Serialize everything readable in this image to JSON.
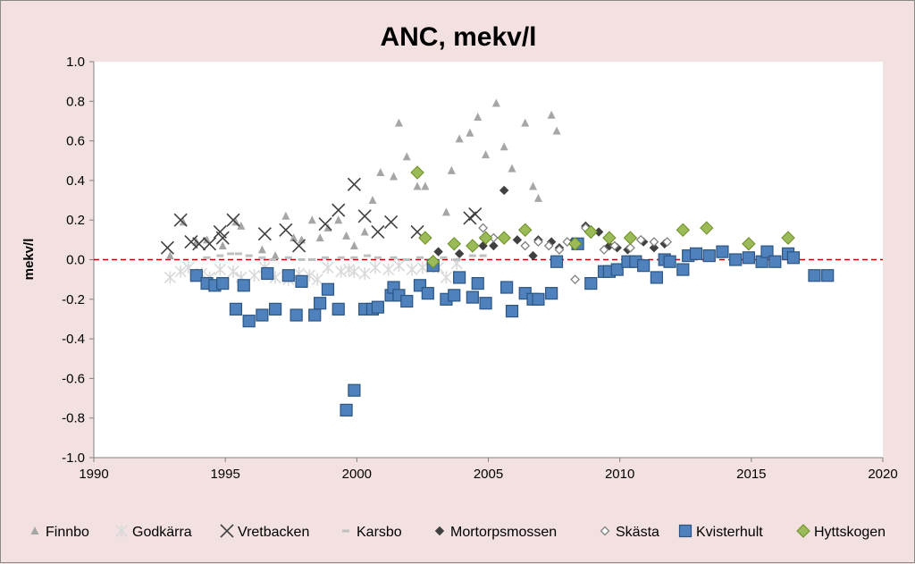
{
  "chart_data": {
    "type": "scatter",
    "title": "ANC, mekv/l",
    "xlabel": "",
    "ylabel": "mekv/l",
    "xlim": [
      1990,
      2020
    ],
    "ylim": [
      -1.0,
      1.0
    ],
    "x_ticks": [
      "1990",
      "1995",
      "2000",
      "2005",
      "2010",
      "2015",
      "2020"
    ],
    "y_ticks": [
      "1.0",
      "0.8",
      "0.6",
      "0.4",
      "0.2",
      "0.0",
      "-0.2",
      "-0.4",
      "-0.6",
      "-0.8",
      "-1.0"
    ],
    "reference_line_y": 0.0,
    "grid": false,
    "legend_position": "bottom",
    "series": [
      {
        "name": "Finnbo",
        "marker": "triangle",
        "color": "#a6a6a6",
        "points": [
          [
            1992.9,
            0.02
          ],
          [
            1993.4,
            0.19
          ],
          [
            1993.9,
            0.09
          ],
          [
            1994.3,
            0.1
          ],
          [
            1994.9,
            0.07
          ],
          [
            1995.4,
            0.19
          ],
          [
            1995.6,
            0.17
          ],
          [
            1996.4,
            0.05
          ],
          [
            1996.9,
            0.02
          ],
          [
            1997.3,
            0.22
          ],
          [
            1997.6,
            0.11
          ],
          [
            1997.9,
            0.1
          ],
          [
            1998.3,
            0.2
          ],
          [
            1998.6,
            0.11
          ],
          [
            1998.9,
            0.16
          ],
          [
            1999.3,
            0.2
          ],
          [
            1999.6,
            0.12
          ],
          [
            1999.9,
            0.07
          ],
          [
            2000.3,
            0.14
          ],
          [
            2000.6,
            0.3
          ],
          [
            2000.9,
            0.44
          ],
          [
            2001.4,
            0.42
          ],
          [
            2001.6,
            0.69
          ],
          [
            2001.9,
            0.52
          ],
          [
            2002.3,
            0.37
          ],
          [
            2002.6,
            0.37
          ],
          [
            2003.4,
            0.24
          ],
          [
            2003.6,
            0.45
          ],
          [
            2003.9,
            0.61
          ],
          [
            2004.3,
            0.64
          ],
          [
            2004.6,
            0.72
          ],
          [
            2004.9,
            0.53
          ],
          [
            2005.3,
            0.79
          ],
          [
            2005.6,
            0.57
          ],
          [
            2005.9,
            0.46
          ],
          [
            2006.4,
            0.69
          ],
          [
            2006.7,
            0.37
          ],
          [
            2006.9,
            0.31
          ],
          [
            2007.4,
            0.73
          ],
          [
            2007.6,
            0.65
          ]
        ]
      },
      {
        "name": "Godkärra",
        "marker": "star",
        "color": "#d9d9d9",
        "points": [
          [
            1992.9,
            -0.09
          ],
          [
            1993.3,
            -0.06
          ],
          [
            1993.6,
            -0.04
          ],
          [
            1994.1,
            -0.07
          ],
          [
            1994.4,
            -0.09
          ],
          [
            1994.8,
            -0.05
          ],
          [
            1995.3,
            -0.06
          ],
          [
            1995.6,
            -0.09
          ],
          [
            1996.1,
            -0.08
          ],
          [
            1996.5,
            -0.04
          ],
          [
            1996.9,
            -0.09
          ],
          [
            1997.4,
            -0.1
          ],
          [
            1997.8,
            -0.07
          ],
          [
            1998.2,
            -0.08
          ],
          [
            1998.5,
            -0.1
          ],
          [
            1998.9,
            -0.04
          ],
          [
            1999.4,
            -0.06
          ],
          [
            1999.7,
            -0.05
          ],
          [
            1999.9,
            -0.06
          ],
          [
            2000.3,
            -0.07
          ],
          [
            2000.7,
            -0.04
          ],
          [
            2001.2,
            -0.05
          ],
          [
            2001.6,
            -0.03
          ],
          [
            2002.1,
            -0.05
          ],
          [
            2002.5,
            -0.04
          ],
          [
            2003.1,
            -0.04
          ],
          [
            2003.4,
            -0.09
          ],
          [
            2003.8,
            -0.02
          ]
        ]
      },
      {
        "name": "Vretbacken",
        "marker": "x",
        "color": "#404040",
        "points": [
          [
            1992.8,
            0.06
          ],
          [
            1993.3,
            0.2
          ],
          [
            1993.7,
            0.09
          ],
          [
            1994.0,
            0.08
          ],
          [
            1994.4,
            0.08
          ],
          [
            1994.8,
            0.14
          ],
          [
            1994.9,
            0.11
          ],
          [
            1995.3,
            0.2
          ],
          [
            1996.5,
            0.13
          ],
          [
            1997.3,
            0.15
          ],
          [
            1997.8,
            0.07
          ],
          [
            1998.8,
            0.18
          ],
          [
            1999.3,
            0.25
          ],
          [
            1999.9,
            0.38
          ],
          [
            2000.3,
            0.22
          ],
          [
            2000.8,
            0.14
          ],
          [
            2001.3,
            0.19
          ],
          [
            2002.3,
            0.14
          ],
          [
            2004.3,
            0.21
          ],
          [
            2004.5,
            0.23
          ]
        ]
      },
      {
        "name": "Karsbo",
        "marker": "dash",
        "color": "#bfbfbf",
        "points": [
          [
            1994.3,
            0.01
          ],
          [
            1994.8,
            0.02
          ],
          [
            1995.2,
            0.03
          ],
          [
            1995.5,
            0.03
          ],
          [
            1995.9,
            0.02
          ],
          [
            1996.4,
            0.01
          ],
          [
            1996.8,
            0.0
          ],
          [
            1997.4,
            0.01
          ],
          [
            1997.9,
            0.0
          ],
          [
            1998.3,
            0.0
          ],
          [
            1998.8,
            0.01
          ],
          [
            1999.4,
            0.01
          ],
          [
            1999.9,
            0.01
          ],
          [
            2000.4,
            0.02
          ],
          [
            2000.8,
            0.01
          ],
          [
            2001.4,
            0.01
          ],
          [
            2001.9,
            0.0
          ],
          [
            2002.4,
            0.01
          ],
          [
            2002.8,
            0.0
          ],
          [
            2003.3,
            0.01
          ],
          [
            2003.8,
            0.0
          ],
          [
            2004.4,
            0.02
          ],
          [
            2004.8,
            0.02
          ]
        ]
      },
      {
        "name": "Mortorpsmossen",
        "marker": "diamond",
        "color": "#404040",
        "points": [
          [
            2003.1,
            0.04
          ],
          [
            2003.9,
            0.03
          ],
          [
            2004.8,
            0.07
          ],
          [
            2005.2,
            0.07
          ],
          [
            2005.6,
            0.35
          ],
          [
            2006.1,
            0.1
          ],
          [
            2006.7,
            0.02
          ],
          [
            2006.9,
            0.1
          ],
          [
            2007.4,
            0.09
          ],
          [
            2007.7,
            0.06
          ],
          [
            2008.2,
            0.09
          ],
          [
            2008.7,
            0.17
          ],
          [
            2009.2,
            0.14
          ],
          [
            2009.6,
            0.07
          ],
          [
            2009.9,
            0.06
          ],
          [
            2010.3,
            0.05
          ],
          [
            2010.9,
            0.09
          ],
          [
            2011.3,
            0.06
          ],
          [
            2011.7,
            0.08
          ]
        ]
      },
      {
        "name": "Skästa",
        "marker": "diamond-open",
        "color": "#808080",
        "points": [
          [
            2004.8,
            0.16
          ],
          [
            2005.2,
            0.11
          ],
          [
            2006.4,
            0.07
          ],
          [
            2006.9,
            0.09
          ],
          [
            2007.3,
            0.07
          ],
          [
            2007.7,
            0.05
          ],
          [
            2008.0,
            0.09
          ],
          [
            2008.3,
            -0.1
          ],
          [
            2008.7,
            0.16
          ],
          [
            2009.4,
            0.05
          ],
          [
            2009.8,
            0.07
          ],
          [
            2010.4,
            0.06
          ],
          [
            2010.8,
            0.1
          ],
          [
            2011.3,
            0.09
          ],
          [
            2011.8,
            0.09
          ]
        ]
      },
      {
        "name": "Kvisterhult",
        "marker": "square",
        "color": "#4f81bd",
        "points": [
          [
            1993.9,
            -0.08
          ],
          [
            1994.3,
            -0.12
          ],
          [
            1994.6,
            -0.13
          ],
          [
            1994.9,
            -0.12
          ],
          [
            1995.4,
            -0.25
          ],
          [
            1995.7,
            -0.13
          ],
          [
            1995.9,
            -0.31
          ],
          [
            1996.4,
            -0.28
          ],
          [
            1996.6,
            -0.07
          ],
          [
            1996.9,
            -0.25
          ],
          [
            1997.4,
            -0.08
          ],
          [
            1997.7,
            -0.28
          ],
          [
            1997.9,
            -0.11
          ],
          [
            1998.4,
            -0.28
          ],
          [
            1998.6,
            -0.22
          ],
          [
            1998.9,
            -0.15
          ],
          [
            1999.3,
            -0.25
          ],
          [
            1999.6,
            -0.76
          ],
          [
            1999.9,
            -0.66
          ],
          [
            2000.3,
            -0.25
          ],
          [
            2000.6,
            -0.25
          ],
          [
            2000.8,
            -0.24
          ],
          [
            2001.3,
            -0.18
          ],
          [
            2001.4,
            -0.14
          ],
          [
            2001.6,
            -0.18
          ],
          [
            2001.9,
            -0.21
          ],
          [
            2002.4,
            -0.13
          ],
          [
            2002.7,
            -0.17
          ],
          [
            2002.9,
            -0.03
          ],
          [
            2003.4,
            -0.2
          ],
          [
            2003.7,
            -0.18
          ],
          [
            2003.9,
            -0.09
          ],
          [
            2004.4,
            -0.19
          ],
          [
            2004.6,
            -0.12
          ],
          [
            2004.9,
            -0.22
          ],
          [
            2005.7,
            -0.14
          ],
          [
            2005.9,
            -0.26
          ],
          [
            2006.4,
            -0.17
          ],
          [
            2006.7,
            -0.2
          ],
          [
            2006.9,
            -0.2
          ],
          [
            2007.4,
            -0.17
          ],
          [
            2007.6,
            -0.01
          ],
          [
            2008.4,
            0.08
          ],
          [
            2008.9,
            -0.12
          ],
          [
            2009.4,
            -0.06
          ],
          [
            2009.6,
            -0.06
          ],
          [
            2009.9,
            -0.05
          ],
          [
            2010.3,
            -0.01
          ],
          [
            2010.6,
            -0.01
          ],
          [
            2010.9,
            -0.03
          ],
          [
            2011.4,
            -0.09
          ],
          [
            2011.7,
            0.0
          ],
          [
            2011.9,
            -0.01
          ],
          [
            2012.4,
            -0.05
          ],
          [
            2012.6,
            0.02
          ],
          [
            2012.9,
            0.03
          ],
          [
            2013.4,
            0.02
          ],
          [
            2013.9,
            0.04
          ],
          [
            2014.4,
            0.0
          ],
          [
            2014.9,
            0.01
          ],
          [
            2015.4,
            -0.01
          ],
          [
            2015.6,
            0.04
          ],
          [
            2015.9,
            -0.01
          ],
          [
            2016.4,
            0.03
          ],
          [
            2016.6,
            0.01
          ],
          [
            2017.4,
            -0.08
          ],
          [
            2017.9,
            -0.08
          ]
        ]
      },
      {
        "name": "Hyttskogen",
        "marker": "diamond",
        "color": "#9bbb59",
        "points": [
          [
            2002.3,
            0.44
          ],
          [
            2002.6,
            0.11
          ],
          [
            2002.9,
            -0.01
          ],
          [
            2003.7,
            0.08
          ],
          [
            2004.4,
            0.07
          ],
          [
            2004.9,
            0.11
          ],
          [
            2005.6,
            0.11
          ],
          [
            2006.4,
            0.15
          ],
          [
            2008.3,
            0.08
          ],
          [
            2008.9,
            0.14
          ],
          [
            2009.6,
            0.11
          ],
          [
            2010.4,
            0.11
          ],
          [
            2012.4,
            0.15
          ],
          [
            2013.3,
            0.16
          ],
          [
            2014.9,
            0.08
          ],
          [
            2016.4,
            0.11
          ]
        ]
      }
    ]
  }
}
